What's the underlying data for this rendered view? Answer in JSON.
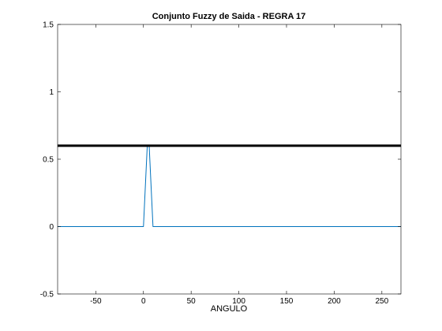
{
  "chart_data": {
    "type": "line",
    "title": "Conjunto Fuzzy de Saida - REGRA 17",
    "xlabel": "ANGULO",
    "ylabel": "",
    "xlim": [
      -90,
      270
    ],
    "ylim": [
      -0.5,
      1.5
    ],
    "xticks": [
      -50,
      0,
      50,
      100,
      150,
      200,
      250
    ],
    "yticks": [
      -0.5,
      0,
      0.5,
      1,
      1.5
    ],
    "xtick_labels": [
      "-50",
      "0",
      "50",
      "100",
      "150",
      "200",
      "250"
    ],
    "ytick_labels": [
      "-0.5",
      "0",
      "0.5",
      "1",
      "1.5"
    ],
    "grid": false,
    "series": [
      {
        "color": "#0072bd",
        "line_width": "thin",
        "x": [
          -90,
          0,
          4,
          6,
          10,
          270
        ],
        "y": [
          0,
          0,
          0.6,
          0.6,
          0,
          0
        ]
      },
      {
        "color": "#000000",
        "line_width": "thick",
        "x": [
          -90,
          270
        ],
        "y": [
          0.6,
          0.6
        ]
      }
    ]
  }
}
